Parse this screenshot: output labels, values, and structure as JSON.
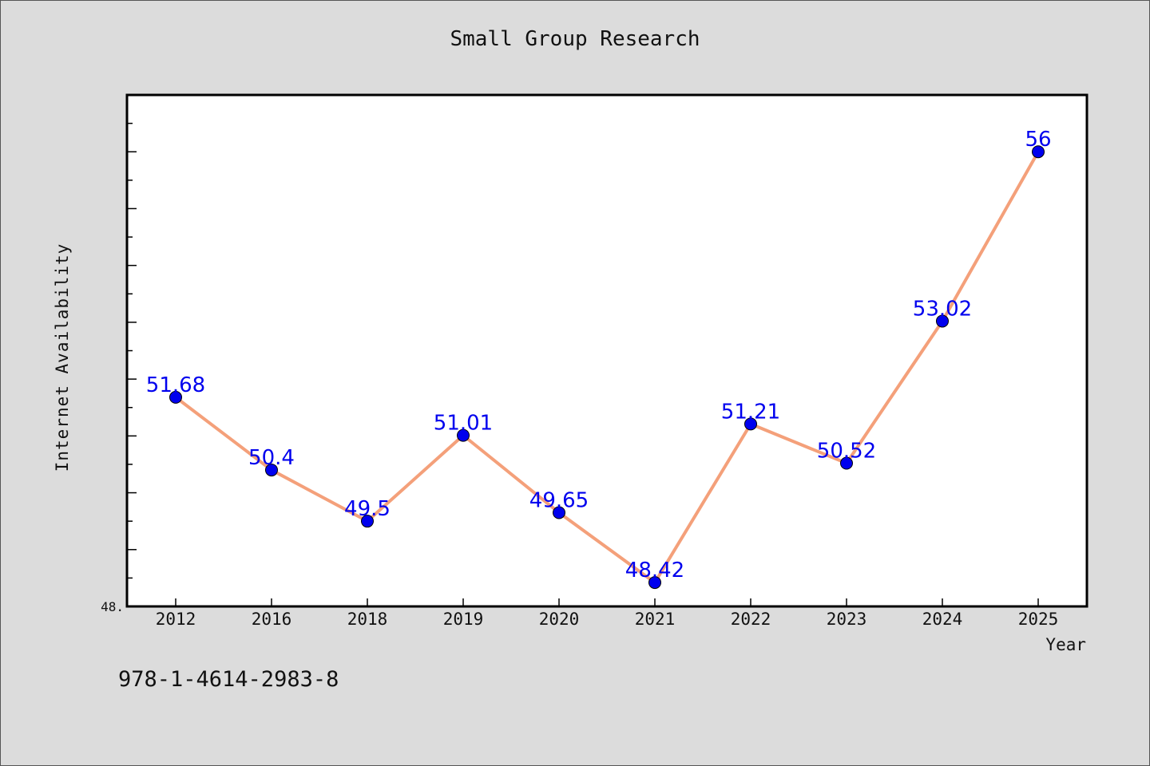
{
  "chart_data": {
    "type": "line",
    "title": "Small Group Research",
    "xlabel": "Year",
    "ylabel": "Internet Availability",
    "categories": [
      "2012",
      "2016",
      "2018",
      "2019",
      "2020",
      "2021",
      "2022",
      "2023",
      "2024",
      "2025"
    ],
    "values": [
      51.68,
      50.4,
      49.5,
      51.01,
      49.65,
      48.42,
      51.21,
      50.52,
      53.02,
      56
    ],
    "data_labels": [
      "51.68",
      "50.4",
      "49.5",
      "51.01",
      "49.65",
      "48.42",
      "51.21",
      "50.52",
      "53.02",
      "56"
    ],
    "y_tick_labels": [
      "48."
    ],
    "ylim": [
      48.0,
      57.0
    ],
    "grid": false,
    "legend": "none",
    "colors": {
      "line": "#f4a07a",
      "marker": "#0000ee",
      "label": "#0000ee",
      "background": "#dcdcdc",
      "plot_bg": "#ffffff"
    }
  },
  "footer_text": "978-1-4614-2983-8"
}
